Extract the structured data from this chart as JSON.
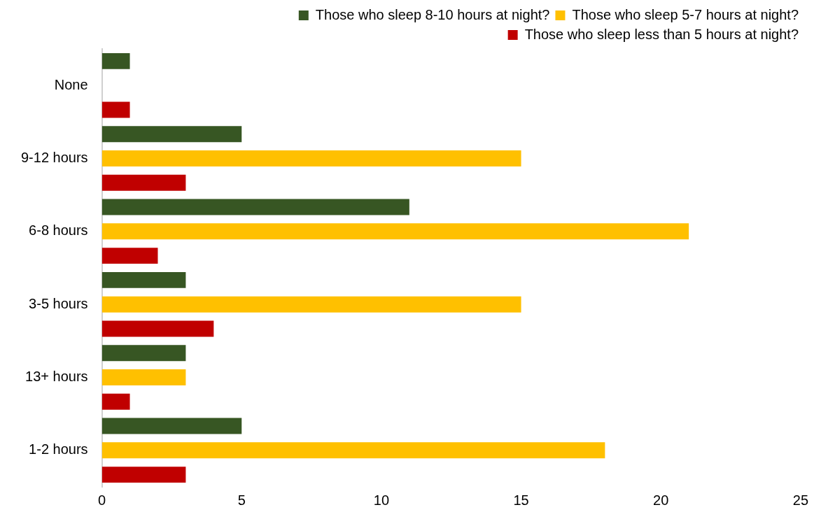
{
  "chart_data": {
    "type": "bar",
    "orientation": "horizontal",
    "categories": [
      "None",
      "9-12 hours",
      "6-8 hours",
      "3-5 hours",
      "13+ hours",
      "1-2 hours"
    ],
    "series": [
      {
        "name": "Those who sleep 8-10 hours at night?",
        "color": "#375623",
        "values": [
          1,
          5,
          11,
          3,
          3,
          5
        ]
      },
      {
        "name": "Those who sleep 5-7 hours at night?",
        "color": "#ffc000",
        "values": [
          0,
          15,
          21,
          15,
          3,
          18
        ]
      },
      {
        "name": "Those who sleep less than 5 hours at night?",
        "color": "#c00000",
        "values": [
          1,
          3,
          2,
          4,
          1,
          3
        ]
      }
    ],
    "xlim": [
      0,
      25
    ],
    "xticks": [
      0,
      5,
      10,
      15,
      20,
      25
    ],
    "grid": false,
    "legend": "top right"
  }
}
